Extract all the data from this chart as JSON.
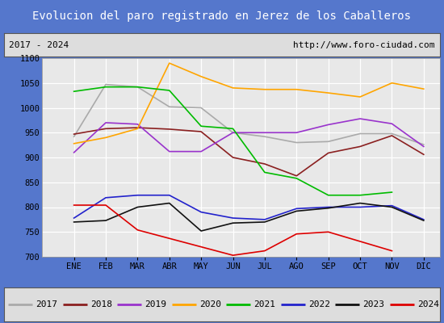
{
  "title": "Evolucion del paro registrado en Jerez de los Caballeros",
  "subtitle_left": "2017 - 2024",
  "subtitle_right": "http://www.foro-ciudad.com",
  "xlabel_ticks": [
    "ENE",
    "FEB",
    "MAR",
    "ABR",
    "MAY",
    "JUN",
    "JUL",
    "AGO",
    "SEP",
    "OCT",
    "NOV",
    "DIC"
  ],
  "ylim": [
    700,
    1100
  ],
  "yticks": [
    700,
    750,
    800,
    850,
    900,
    950,
    1000,
    1050,
    1100
  ],
  "series": {
    "2017": {
      "color": "#aaaaaa",
      "values": [
        942,
        1047,
        1042,
        1002,
        1000,
        950,
        942,
        930,
        932,
        948,
        948,
        926
      ]
    },
    "2018": {
      "color": "#8b2020",
      "values": [
        947,
        958,
        960,
        957,
        952,
        900,
        887,
        863,
        909,
        922,
        944,
        906
      ]
    },
    "2019": {
      "color": "#9933cc",
      "values": [
        910,
        970,
        967,
        912,
        912,
        950,
        950,
        950,
        966,
        978,
        968,
        922
      ]
    },
    "2020": {
      "color": "#ffa500",
      "values": [
        928,
        940,
        958,
        1090,
        1063,
        1040,
        1037,
        1037,
        1030,
        1022,
        1050,
        1038
      ]
    },
    "2021": {
      "color": "#00bb00",
      "values": [
        1033,
        1042,
        1042,
        1035,
        963,
        958,
        870,
        858,
        824,
        824,
        830,
        null
      ]
    },
    "2022": {
      "color": "#2222cc",
      "values": [
        778,
        819,
        824,
        824,
        790,
        778,
        775,
        797,
        800,
        800,
        803,
        775
      ]
    },
    "2023": {
      "color": "#111111",
      "values": [
        770,
        773,
        800,
        808,
        752,
        768,
        770,
        792,
        798,
        808,
        800,
        773
      ]
    },
    "2024": {
      "color": "#dd0000",
      "values": [
        804,
        804,
        754,
        null,
        null,
        703,
        712,
        746,
        750,
        null,
        712,
        null
      ]
    }
  },
  "title_bg_color": "#5577cc",
  "title_fg_color": "#ffffff",
  "plot_bg_color": "#e8e8e8",
  "grid_color": "#ffffff",
  "border_color": "#5577cc",
  "subtitle_box_color": "#dddddd",
  "legend_bg_color": "#dddddd"
}
